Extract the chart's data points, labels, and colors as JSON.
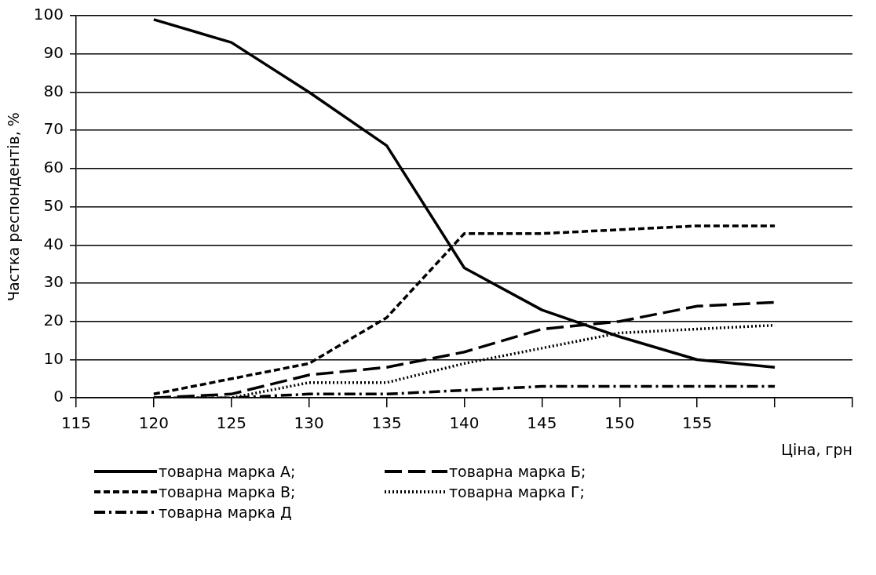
{
  "chart_data": {
    "type": "line",
    "xlabel": "Ціна, грн",
    "ylabel": "Частка респондентів, %",
    "x": [
      120,
      125,
      130,
      135,
      140,
      145,
      150,
      155,
      160
    ],
    "xlim": [
      115,
      165
    ],
    "xticks": [
      115,
      120,
      125,
      130,
      135,
      140,
      145,
      150,
      155,
      {
        "value": 160,
        "label": null
      },
      {
        "value": 165,
        "label": null
      }
    ],
    "ylim": [
      0,
      100
    ],
    "yticks": [
      0,
      10,
      20,
      30,
      40,
      50,
      60,
      70,
      80,
      90,
      100
    ],
    "grid": "y",
    "legend": "bottom",
    "marker": "none",
    "series": [
      {
        "name": "товарна марка А;",
        "color": "#000000",
        "line_style": "solid",
        "values": [
          99,
          93,
          80,
          66,
          34,
          23,
          16,
          10,
          8
        ]
      },
      {
        "name": "товарна марка Б;",
        "color": "#000000",
        "line_style": "longdash",
        "values": [
          0,
          1,
          6,
          8,
          12,
          18,
          20,
          24,
          25
        ]
      },
      {
        "name": "товарна марка В;",
        "color": "#000000",
        "line_style": "dashed",
        "values": [
          1,
          5,
          9,
          21,
          43,
          43,
          44,
          45,
          45
        ]
      },
      {
        "name": "товарна марка Г;",
        "color": "#000000",
        "line_style": "dotted",
        "values": [
          0,
          0,
          4,
          4,
          9,
          13,
          17,
          18,
          19
        ]
      },
      {
        "name": "товарна марка Д",
        "color": "#000000",
        "line_style": "dashdot",
        "values": [
          0,
          0,
          1,
          1,
          2,
          3,
          3,
          3,
          3
        ]
      }
    ]
  }
}
